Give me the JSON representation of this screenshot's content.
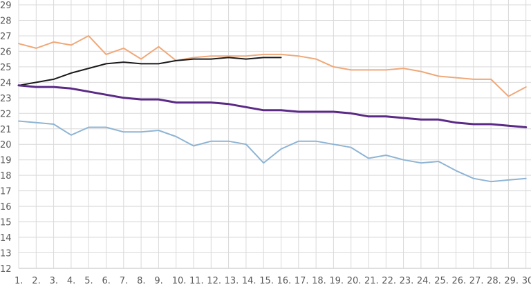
{
  "chart_data": {
    "type": "line",
    "title": "",
    "xlabel": "",
    "ylabel": "",
    "ylim": [
      12,
      29
    ],
    "grid": true,
    "legend": "none",
    "categories": [
      "1.",
      "2.",
      "3.",
      "4.",
      "5.",
      "6.",
      "7.",
      "8.",
      "9.",
      "10.",
      "11.",
      "12.",
      "13.",
      "14.",
      "15.",
      "16.",
      "17.",
      "18.",
      "19.",
      "20.",
      "21.",
      "22.",
      "23.",
      "24.",
      "25.",
      "26.",
      "27.",
      "28.",
      "29.",
      "30."
    ],
    "yticks": [
      12,
      13,
      14,
      15,
      16,
      17,
      18,
      19,
      20,
      21,
      22,
      23,
      24,
      25,
      26,
      27,
      28,
      29
    ],
    "series": [
      {
        "name": "orange",
        "color": "#f0a878",
        "width": 2,
        "values": [
          26.5,
          26.2,
          26.6,
          26.4,
          27.0,
          25.8,
          26.2,
          25.5,
          26.3,
          25.4,
          25.6,
          25.7,
          25.7,
          25.7,
          25.8,
          25.8,
          25.7,
          25.5,
          25.0,
          24.8,
          24.8,
          24.8,
          24.9,
          24.7,
          24.4,
          24.3,
          24.2,
          24.2,
          23.1,
          23.7
        ]
      },
      {
        "name": "black",
        "color": "#1a1a1a",
        "width": 2,
        "values": [
          23.8,
          24.0,
          24.2,
          24.6,
          24.9,
          25.2,
          25.3,
          25.2,
          25.2,
          25.4,
          25.5,
          25.5,
          25.6,
          25.5,
          25.6,
          25.6
        ]
      },
      {
        "name": "purple",
        "color": "#5b2a86",
        "width": 3,
        "values": [
          23.8,
          23.7,
          23.7,
          23.6,
          23.4,
          23.2,
          23.0,
          22.9,
          22.9,
          22.7,
          22.7,
          22.7,
          22.6,
          22.4,
          22.2,
          22.2,
          22.1,
          22.1,
          22.1,
          22.0,
          21.8,
          21.8,
          21.7,
          21.6,
          21.6,
          21.4,
          21.3,
          21.3,
          21.2,
          21.1
        ]
      },
      {
        "name": "blue",
        "color": "#8eb4d4",
        "width": 2,
        "values": [
          21.5,
          21.4,
          21.3,
          20.6,
          21.1,
          21.1,
          20.8,
          20.8,
          20.9,
          20.5,
          19.9,
          20.2,
          20.2,
          20.0,
          18.8,
          19.7,
          20.2,
          20.2,
          20.0,
          19.8,
          19.1,
          19.3,
          19.0,
          18.8,
          18.9,
          18.3,
          17.8,
          17.6,
          17.7,
          17.8
        ]
      }
    ]
  }
}
